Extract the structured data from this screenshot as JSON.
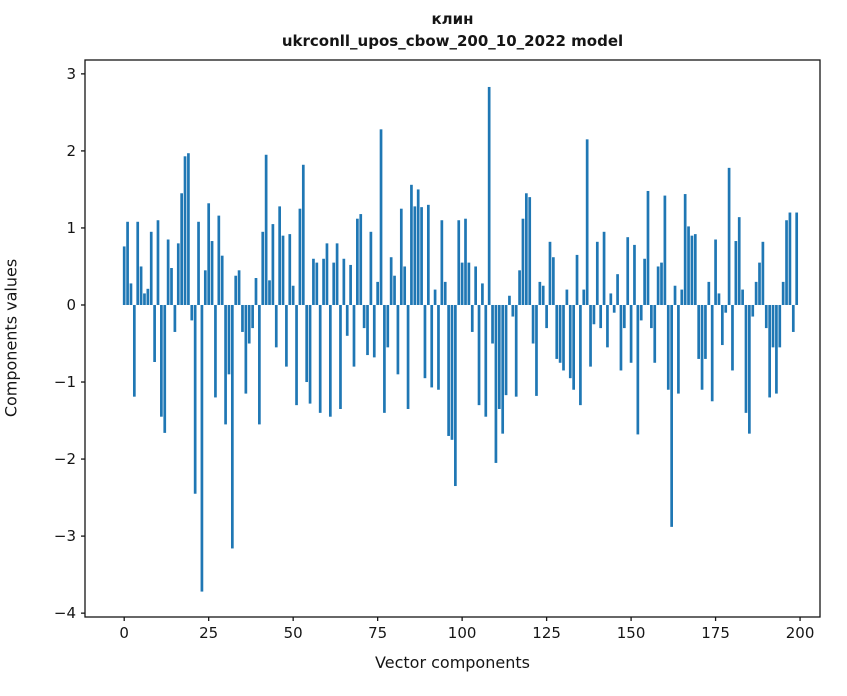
{
  "chart_data": {
    "type": "bar",
    "title_line1": "клин",
    "title_line2": "ukrconll_upos_cbow_200_10_2022 model",
    "xlabel": "Vector components",
    "ylabel": "Components values",
    "x_ticks": [
      0,
      25,
      50,
      75,
      100,
      125,
      150,
      175,
      200
    ],
    "y_ticks": [
      3,
      2,
      1,
      0,
      -1,
      -2,
      -3,
      -4
    ],
    "xlim": [
      -11.6,
      205.9
    ],
    "ylim": [
      -4.05,
      3.18
    ],
    "grid": false,
    "legend_position": "none",
    "bar_color": "#1f77b4",
    "axis_color": "#151515",
    "x_start": 0,
    "values": [
      0.76,
      1.08,
      0.28,
      -1.19,
      1.08,
      0.5,
      0.15,
      0.21,
      0.95,
      -0.74,
      1.1,
      -1.45,
      -1.66,
      0.85,
      0.48,
      -0.35,
      0.8,
      1.45,
      1.93,
      1.97,
      -0.2,
      -2.45,
      1.08,
      -3.72,
      0.45,
      1.32,
      0.83,
      -1.2,
      1.16,
      0.64,
      -1.55,
      -0.9,
      -3.16,
      0.38,
      0.45,
      -0.35,
      -1.15,
      -0.5,
      -0.3,
      0.35,
      -1.55,
      0.95,
      1.95,
      0.32,
      1.05,
      -0.55,
      1.28,
      0.9,
      -0.8,
      0.92,
      0.25,
      -1.3,
      1.25,
      1.82,
      -1.0,
      -1.28,
      0.6,
      0.55,
      -1.4,
      0.6,
      0.8,
      -1.45,
      0.55,
      0.8,
      -1.35,
      0.6,
      -0.4,
      0.52,
      -0.8,
      1.12,
      1.18,
      -0.3,
      -0.65,
      0.95,
      -0.68,
      0.3,
      2.28,
      -1.4,
      -0.55,
      0.62,
      0.38,
      -0.9,
      1.25,
      0.5,
      -1.35,
      1.56,
      1.28,
      1.5,
      1.27,
      -0.95,
      1.3,
      -1.07,
      0.2,
      -1.1,
      1.1,
      0.3,
      -1.7,
      -1.75,
      -2.35,
      1.1,
      0.55,
      1.12,
      0.55,
      -0.35,
      0.5,
      -1.3,
      0.28,
      -1.45,
      2.83,
      -0.5,
      -2.05,
      -1.35,
      -1.67,
      -1.17,
      0.12,
      -0.15,
      -1.19,
      0.45,
      1.12,
      1.45,
      1.4,
      -0.5,
      -1.18,
      0.3,
      0.25,
      -0.3,
      0.82,
      0.62,
      -0.7,
      -0.75,
      -0.85,
      0.2,
      -0.95,
      -1.1,
      0.65,
      -1.3,
      0.2,
      2.15,
      -0.8,
      -0.25,
      0.82,
      -0.3,
      0.95,
      -0.55,
      0.15,
      -0.1,
      0.4,
      -0.85,
      -0.3,
      0.88,
      -0.75,
      0.78,
      -1.68,
      -0.2,
      0.6,
      1.48,
      -0.3,
      -0.75,
      0.5,
      0.55,
      1.42,
      -1.1,
      -2.88,
      0.25,
      -1.15,
      0.2,
      1.44,
      1.02,
      0.9,
      0.92,
      -0.7,
      -1.1,
      -0.7,
      0.3,
      -1.25,
      0.85,
      0.15,
      -0.52,
      -0.1,
      1.78,
      -0.85,
      0.83,
      1.14,
      0.2,
      -1.4,
      -1.67,
      -0.15,
      0.3,
      0.55,
      0.82,
      -0.3,
      -1.2,
      -0.55,
      -1.15,
      -0.55,
      0.3,
      1.1,
      1.2,
      -0.35,
      1.2
    ]
  }
}
